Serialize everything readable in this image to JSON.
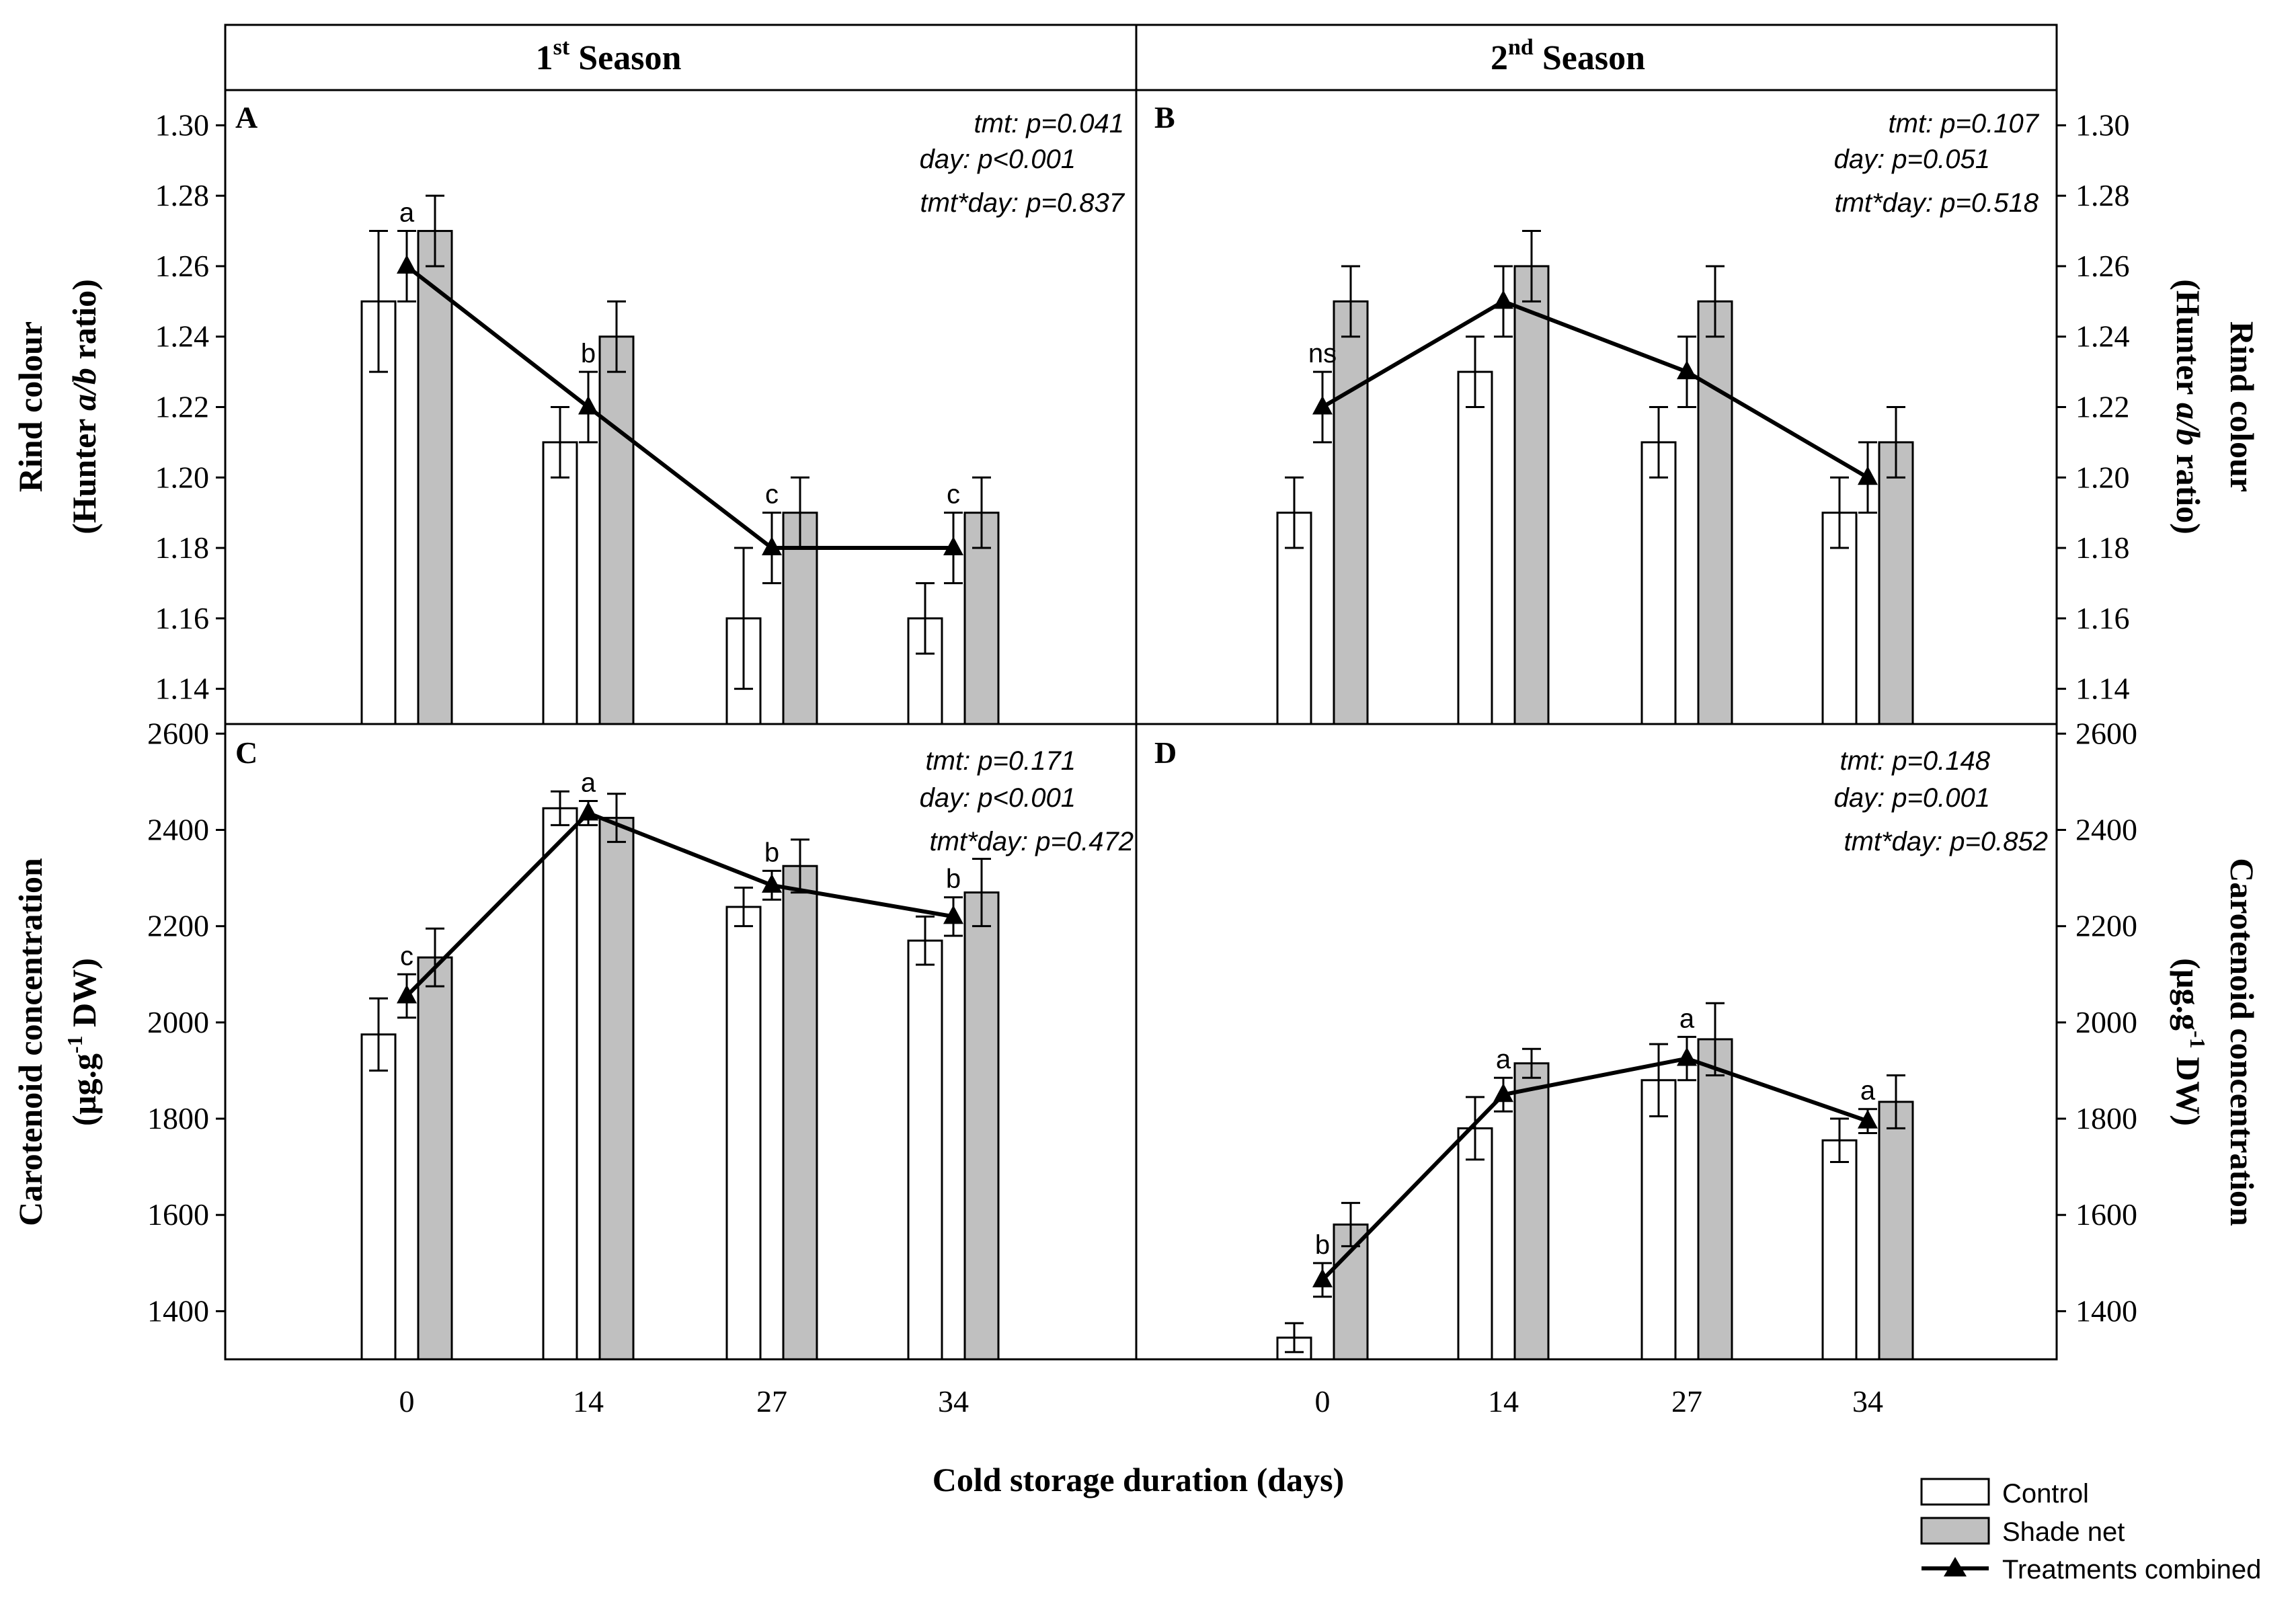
{
  "seasons": {
    "left": {
      "label": "1",
      "sup": "st",
      "rest": " Season"
    },
    "right": {
      "label": "2",
      "sup": "nd",
      "rest": " Season"
    }
  },
  "x_axis_title": "Cold storage duration (days)",
  "x_categories": [
    "0",
    "14",
    "27",
    "34"
  ],
  "y_titles": {
    "rind_line1": "Rind colour",
    "rind_line2_pre": "(Hunter ",
    "rind_line2_ital": "a/b",
    "rind_line2_post": " ratio)",
    "carot_line1": "Carotenoid concentration",
    "carot_line2_pre": "(µg.g",
    "carot_line2_sup": "-1",
    "carot_line2_post": " DW)"
  },
  "legend": {
    "control": "Control",
    "shade": "Shade net",
    "combined": "Treatments combined"
  },
  "colors": {
    "control": "#ffffff",
    "shade": "#c0c0c0",
    "line": "#000000"
  },
  "chart_data": [
    {
      "panel": "A",
      "type": "bar",
      "categories": [
        "0",
        "14",
        "27",
        "34"
      ],
      "ylim": [
        1.13,
        1.31
      ],
      "yticks": [
        "1.14",
        "1.16",
        "1.18",
        "1.20",
        "1.22",
        "1.24",
        "1.26",
        "1.28",
        "1.30"
      ],
      "series": [
        {
          "name": "Control",
          "values": [
            1.25,
            1.21,
            1.16,
            1.16
          ],
          "errors": [
            0.02,
            0.01,
            0.02,
            0.01
          ]
        },
        {
          "name": "Shade net",
          "values": [
            1.27,
            1.24,
            1.19,
            1.19
          ],
          "errors": [
            0.01,
            0.01,
            0.01,
            0.01
          ]
        },
        {
          "name": "Treatments combined",
          "values": [
            1.26,
            1.22,
            1.18,
            1.18
          ],
          "errors": [
            0.01,
            0.01,
            0.01,
            0.01
          ],
          "letters": [
            "a",
            "b",
            "c",
            "c"
          ]
        }
      ],
      "stats": [
        "tmt: p=0.041",
        "day: p<0.001",
        "tmt*day: p=0.837"
      ]
    },
    {
      "panel": "B",
      "type": "bar",
      "categories": [
        "0",
        "14",
        "27",
        "34"
      ],
      "ylim": [
        1.13,
        1.31
      ],
      "yticks": [
        "1.14",
        "1.16",
        "1.18",
        "1.20",
        "1.22",
        "1.24",
        "1.26",
        "1.28",
        "1.30"
      ],
      "series": [
        {
          "name": "Control",
          "values": [
            1.19,
            1.23,
            1.21,
            1.19
          ],
          "errors": [
            0.01,
            0.01,
            0.01,
            0.01
          ]
        },
        {
          "name": "Shade net",
          "values": [
            1.25,
            1.26,
            1.25,
            1.21
          ],
          "errors": [
            0.01,
            0.01,
            0.01,
            0.01
          ]
        },
        {
          "name": "Treatments combined",
          "values": [
            1.22,
            1.25,
            1.23,
            1.2
          ],
          "errors": [
            0.01,
            0.01,
            0.01,
            0.01
          ],
          "letters": [
            "ns",
            "",
            "",
            ""
          ]
        }
      ],
      "stats": [
        "tmt: p=0.107",
        "day: p=0.051",
        "tmt*day: p=0.518"
      ]
    },
    {
      "panel": "C",
      "type": "bar",
      "categories": [
        "0",
        "14",
        "27",
        "34"
      ],
      "ylim": [
        1300,
        2620
      ],
      "yticks": [
        "1400",
        "1600",
        "1800",
        "2000",
        "2200",
        "2400",
        "2600"
      ],
      "series": [
        {
          "name": "Control",
          "values": [
            1975,
            2445,
            2240,
            2170
          ],
          "errors": [
            75,
            35,
            40,
            50
          ]
        },
        {
          "name": "Shade net",
          "values": [
            2135,
            2425,
            2325,
            2270
          ],
          "errors": [
            60,
            50,
            55,
            70
          ]
        },
        {
          "name": "Treatments combined",
          "values": [
            2055,
            2435,
            2285,
            2220
          ],
          "errors": [
            45,
            25,
            30,
            40
          ],
          "letters": [
            "c",
            "a",
            "b",
            "b"
          ]
        }
      ],
      "stats": [
        "tmt: p=0.171",
        "day: p<0.001",
        "tmt*day: p=0.472"
      ]
    },
    {
      "panel": "D",
      "type": "bar",
      "categories": [
        "0",
        "14",
        "27",
        "34"
      ],
      "ylim": [
        1300,
        2620
      ],
      "yticks": [
        "1400",
        "1600",
        "1800",
        "2000",
        "2200",
        "2400",
        "2600"
      ],
      "series": [
        {
          "name": "Control",
          "values": [
            1345,
            1780,
            1880,
            1755
          ],
          "errors": [
            30,
            65,
            75,
            45
          ]
        },
        {
          "name": "Shade net",
          "values": [
            1580,
            1915,
            1965,
            1835
          ],
          "errors": [
            45,
            30,
            75,
            55
          ]
        },
        {
          "name": "Treatments combined",
          "values": [
            1465,
            1850,
            1925,
            1795
          ],
          "errors": [
            35,
            35,
            45,
            25
          ],
          "letters": [
            "b",
            "a",
            "a",
            "a"
          ]
        }
      ],
      "stats": [
        "tmt: p=0.148",
        "day: p=0.001",
        "tmt*day: p=0.852"
      ]
    }
  ]
}
